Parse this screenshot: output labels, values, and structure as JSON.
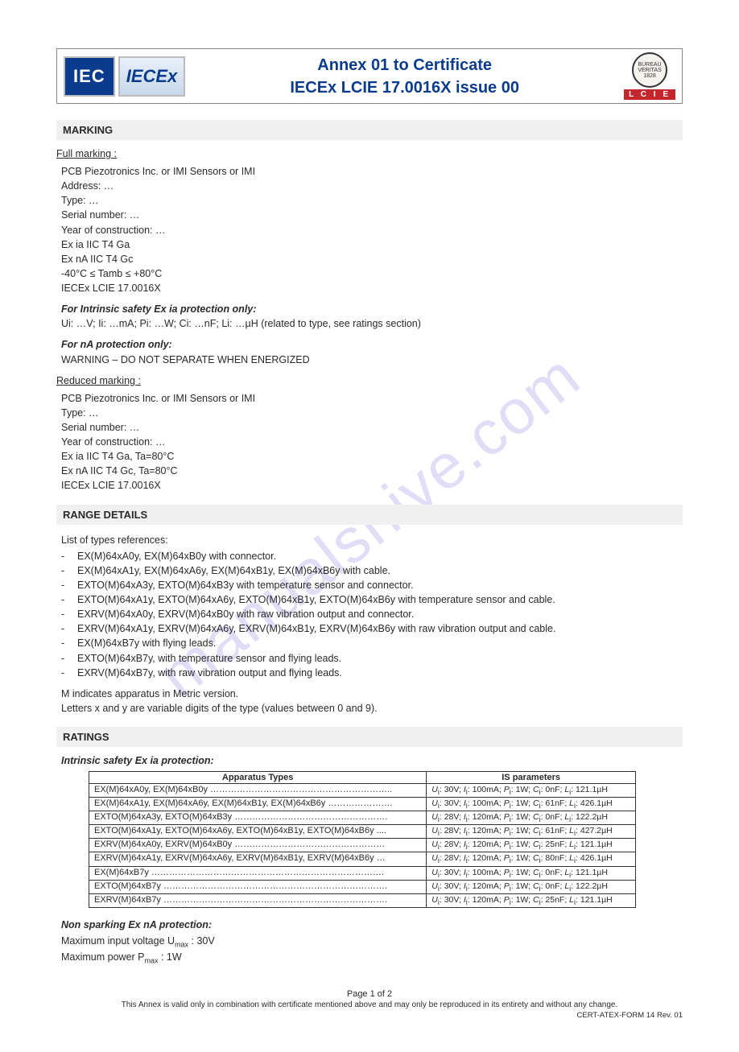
{
  "watermark": "manualshive.com",
  "header": {
    "logo_iec": "IEC",
    "logo_iecex": "IECEx",
    "title_line1": "Annex 01 to Certificate",
    "title_line2": "IECEx LCIE 17.0016X issue 00",
    "bv_seal": "BUREAU VERITAS 1828",
    "lcie": "L C I E"
  },
  "marking": {
    "heading": "MARKING",
    "full_label": "Full marking :",
    "full_lines": [
      "PCB Piezotronics Inc. or IMI Sensors or IMI",
      "Address: …",
      "Type: …",
      "Serial number: …",
      "Year of construction: …",
      "Ex ia IIC T4 Ga",
      "Ex nA IIC T4 Gc",
      "-40°C ≤ Tamb ≤ +80°C",
      "IECEx LCIE 17.0016X"
    ],
    "intrinsic_label": "For Intrinsic safety Ex ia protection only:",
    "intrinsic_body": "Ui: …V; Ii: …mA; Pi: …W; Ci: …nF; Li: …µH (related to type, see ratings section)",
    "na_label": "For nA protection only:",
    "na_body": "WARNING – DO NOT SEPARATE WHEN ENERGIZED",
    "reduced_label": "Reduced marking :",
    "reduced_lines": [
      "PCB Piezotronics Inc. or IMI Sensors or IMI",
      "Type: …",
      "Serial number: …",
      "Year of construction: …",
      "Ex ia IIC T4 Ga, Ta=80°C",
      "Ex nA IIC T4 Gc, Ta=80°C",
      "IECEx LCIE 17.0016X"
    ]
  },
  "range": {
    "heading": "RANGE DETAILS",
    "intro": "List of types references:",
    "items": [
      "EX(M)64xA0y, EX(M)64xB0y with connector.",
      "EX(M)64xA1y, EX(M)64xA6y, EX(M)64xB1y, EX(M)64xB6y with cable.",
      "EXTO(M)64xA3y, EXTO(M)64xB3y with temperature sensor and connector.",
      "EXTO(M)64xA1y, EXTO(M)64xA6y, EXTO(M)64xB1y, EXTO(M)64xB6y with temperature sensor and cable.",
      "EXRV(M)64xA0y, EXRV(M)64xB0y with raw vibration output and connector.",
      "EXRV(M)64xA1y, EXRV(M)64xA6y, EXRV(M)64xB1y, EXRV(M)64xB6y with raw vibration output and cable.",
      "EX(M)64xB7y with flying leads.",
      "EXTO(M)64xB7y, with temperature sensor and flying leads.",
      "EXRV(M)64xB7y, with raw vibration output and flying leads."
    ],
    "note1": "M indicates apparatus in Metric version.",
    "note2": "Letters x and y are variable digits of the type (values between 0 and 9)."
  },
  "ratings": {
    "heading": "RATINGS",
    "intrinsic_label": "Intrinsic safety Ex ia protection:",
    "col1": "Apparatus Types",
    "col2": "IS parameters",
    "rows": [
      {
        "t": "EX(M)64xA0y, EX(M)64xB0y ……………………………………………………..",
        "p": "Ui: 30V; Ii: 100mA; Pi: 1W; Ci: 0nF; Li: 121.1µH"
      },
      {
        "t": "EX(M)64xA1y, EX(M)64xA6y, EX(M)64xB1y, EX(M)64xB6y ………………….",
        "p": "Ui: 30V; Ii: 100mA; Pi: 1W; Ci: 61nF; Li: 426.1µH"
      },
      {
        "t": "EXTO(M)64xA3y, EXTO(M)64xB3y …………………………………………….",
        "p": "Ui: 28V; Ii: 120mA; Pi: 1W; Ci: 0nF; Li: 122.2µH"
      },
      {
        "t": "EXTO(M)64xA1y, EXTO(M)64xA6y, EXTO(M)64xB1y, EXTO(M)64xB6y ....",
        "p": "Ui: 28V; Ii: 120mA; Pi: 1W; Ci: 61nF; Li: 427.2µH"
      },
      {
        "t": "EXRV(M)64xA0y, EXRV(M)64xB0y ……………………………………………",
        "p": "Ui: 28V; Ii: 120mA; Pi: 1W; Ci: 25nF; Li: 121.1µH"
      },
      {
        "t": "EXRV(M)64xA1y, EXRV(M)64xA6y, EXRV(M)64xB1y, EXRV(M)64xB6y …",
        "p": "Ui: 28V; Ii: 120mA; Pi: 1W; Ci: 80nF; Li: 426.1µH"
      },
      {
        "t": "EX(M)64xB7y …………………………………………………………………….",
        "p": "Ui: 30V; Ii: 100mA; Pi: 1W; Ci: 0nF; Li: 121.1µH"
      },
      {
        "t": "EXTO(M)64xB7y ………………………………………………………………….",
        "p": "Ui: 30V; Ii: 120mA; Pi: 1W; Ci: 0nF; Li: 122.2µH"
      },
      {
        "t": "EXRV(M)64xB7y ………………………………………………………………….",
        "p": "Ui: 30V; Ii: 120mA; Pi: 1W; Ci: 25nF; Li: 121.1µH"
      }
    ],
    "nonsparking_label": "Non sparking Ex nA protection:",
    "nonsparking_lines": [
      "Maximum input voltage Umax : 30V",
      "Maximum power Pmax : 1W"
    ]
  },
  "footer": {
    "page": "Page 1 of 2",
    "note": "This Annex is valid only in combination with certificate mentioned above and may only be reproduced in its entirety and without any change.",
    "form": "CERT-ATEX-FORM 14 Rev. 01"
  }
}
